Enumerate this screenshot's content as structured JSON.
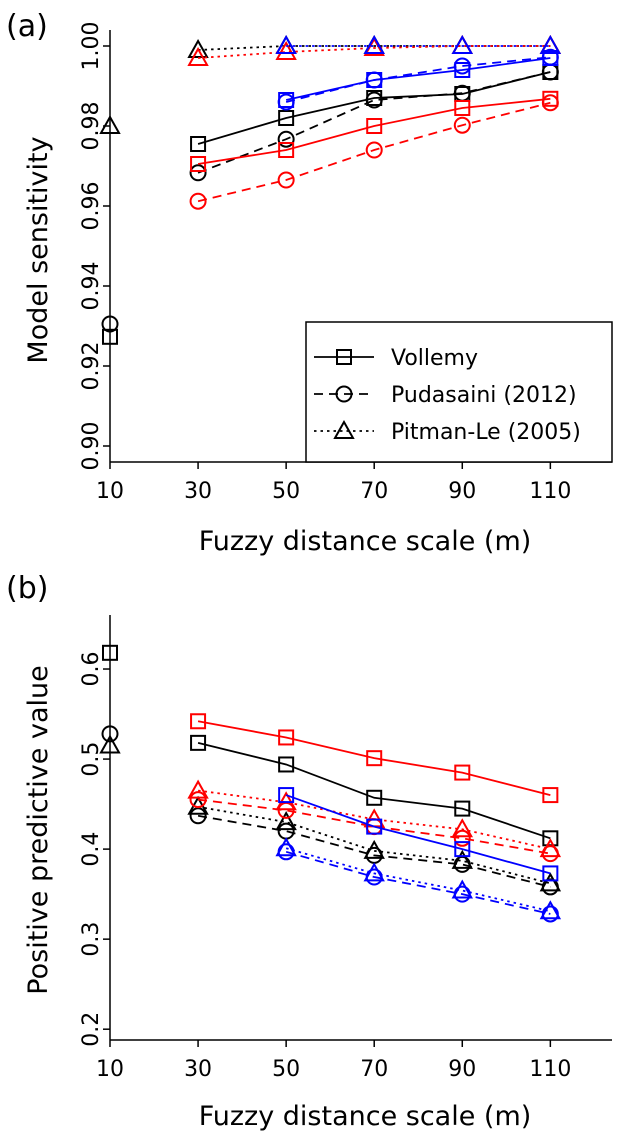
{
  "colors": {
    "Vollemy": "#000000",
    "black": "#000000",
    "red": "#ff0000",
    "blue": "#0000ff"
  },
  "chart_data": [
    {
      "panel_label": "(a)",
      "type": "line",
      "xlabel": "Fuzzy distance scale (m)",
      "ylabel": "Model sensitivity",
      "xticks": [
        10,
        30,
        50,
        70,
        90,
        110
      ],
      "xtick_labels": [
        "10",
        "30",
        "50",
        "70",
        "90",
        "110"
      ],
      "yticks": [
        0.9,
        0.92,
        0.94,
        0.96,
        0.98,
        1.0
      ],
      "ytick_labels": [
        "0.90",
        "0.92",
        "0.94",
        "0.96",
        "0.98",
        "1.00"
      ],
      "xlim": [
        10,
        124
      ],
      "ylim": [
        0.896,
        1.004
      ],
      "grid": false,
      "legend_position": "bottom-right",
      "legend": [
        {
          "label": "Vollemy",
          "marker": "square",
          "dash": "solid"
        },
        {
          "label": "Pudasaini (2012)",
          "marker": "circle",
          "dash": "dashed"
        },
        {
          "label": "Pitman-Le (2005)",
          "marker": "triangle",
          "dash": "dotted"
        }
      ],
      "series": [
        {
          "model": "Vollemy",
          "color": "black",
          "marker": "square",
          "dash": "solid",
          "x": [
            30,
            50,
            70,
            90,
            110
          ],
          "y": [
            0.9755,
            0.982,
            0.987,
            0.988,
            0.9935
          ]
        },
        {
          "model": "Pudasaini (2012)",
          "color": "black",
          "marker": "circle",
          "dash": "dashed",
          "x": [
            30,
            50,
            70,
            90,
            110
          ],
          "y": [
            0.9683,
            0.9767,
            0.9865,
            0.9882,
            0.9935
          ]
        },
        {
          "model": "Pitman-Le (2005)",
          "color": "black",
          "marker": "triangle",
          "dash": "dotted",
          "x": [
            30,
            50,
            70,
            90,
            110
          ],
          "y": [
            0.999,
            1.0,
            1.0,
            1.0,
            1.0
          ]
        },
        {
          "model": "Vollemy",
          "color": "red",
          "marker": "square",
          "dash": "solid",
          "x": [
            30,
            50,
            70,
            90,
            110
          ],
          "y": [
            0.9705,
            0.974,
            0.98,
            0.9845,
            0.9868
          ]
        },
        {
          "model": "Pudasaini (2012)",
          "color": "red",
          "marker": "circle",
          "dash": "dashed",
          "x": [
            30,
            50,
            70,
            90,
            110
          ],
          "y": [
            0.9612,
            0.9665,
            0.974,
            0.9802,
            0.9858
          ]
        },
        {
          "model": "Pitman-Le (2005)",
          "color": "red",
          "marker": "triangle",
          "dash": "dotted",
          "x": [
            30,
            50,
            70,
            90,
            110
          ],
          "y": [
            0.997,
            0.9985,
            0.9995,
            1.0,
            1.0
          ]
        },
        {
          "model": "Vollemy",
          "color": "blue",
          "marker": "square",
          "dash": "solid",
          "x": [
            50,
            70,
            90,
            110
          ],
          "y": [
            0.9865,
            0.9915,
            0.994,
            0.997
          ]
        },
        {
          "model": "Pudasaini (2012)",
          "color": "blue",
          "marker": "circle",
          "dash": "dashed",
          "x": [
            50,
            70,
            90,
            110
          ],
          "y": [
            0.986,
            0.9915,
            0.995,
            0.9972
          ]
        },
        {
          "model": "Pitman-Le (2005)",
          "color": "blue",
          "marker": "triangle",
          "dash": "dotted",
          "x": [
            50,
            70,
            90,
            110
          ],
          "y": [
            1.0,
            1.0,
            1.0,
            1.0
          ]
        }
      ],
      "single_points": [
        {
          "model": "Vollemy",
          "color": "black",
          "marker": "square",
          "x": 10,
          "y": 0.9273
        },
        {
          "model": "Pudasaini (2012)",
          "color": "black",
          "marker": "circle",
          "x": 10,
          "y": 0.9305
        },
        {
          "model": "Pitman-Le (2005)",
          "color": "black",
          "marker": "triangle",
          "x": 10,
          "y": 0.98
        }
      ]
    },
    {
      "panel_label": "(b)",
      "type": "line",
      "xlabel": "Fuzzy distance scale (m)",
      "ylabel": "Positive predictive value",
      "xticks": [
        10,
        30,
        50,
        70,
        90,
        110
      ],
      "xtick_labels": [
        "10",
        "30",
        "50",
        "70",
        "90",
        "110"
      ],
      "yticks": [
        0.2,
        0.3,
        0.4,
        0.5,
        0.6
      ],
      "ytick_labels": [
        "0.2",
        "0.3",
        "0.4",
        "0.5",
        "0.6"
      ],
      "xlim": [
        10,
        124
      ],
      "ylim": [
        0.188,
        0.66
      ],
      "grid": false,
      "series": [
        {
          "model": "Vollemy",
          "color": "black",
          "marker": "square",
          "dash": "solid",
          "x": [
            30,
            50,
            70,
            90,
            110
          ],
          "y": [
            0.518,
            0.494,
            0.457,
            0.445,
            0.412
          ]
        },
        {
          "model": "Pudasaini (2012)",
          "color": "black",
          "marker": "circle",
          "dash": "dashed",
          "x": [
            30,
            50,
            70,
            90,
            110
          ],
          "y": [
            0.437,
            0.42,
            0.393,
            0.383,
            0.358
          ]
        },
        {
          "model": "Pitman-Le (2005)",
          "color": "black",
          "marker": "triangle",
          "dash": "dotted",
          "x": [
            30,
            50,
            70,
            90,
            110
          ],
          "y": [
            0.447,
            0.43,
            0.398,
            0.387,
            0.362
          ]
        },
        {
          "model": "Vollemy",
          "color": "red",
          "marker": "square",
          "dash": "solid",
          "x": [
            30,
            50,
            70,
            90,
            110
          ],
          "y": [
            0.542,
            0.524,
            0.501,
            0.485,
            0.46
          ]
        },
        {
          "model": "Pudasaini (2012)",
          "color": "red",
          "marker": "circle",
          "dash": "dashed",
          "x": [
            30,
            50,
            70,
            90,
            110
          ],
          "y": [
            0.455,
            0.443,
            0.425,
            0.412,
            0.395
          ]
        },
        {
          "model": "Pitman-Le (2005)",
          "color": "red",
          "marker": "triangle",
          "dash": "dotted",
          "x": [
            30,
            50,
            70,
            90,
            110
          ],
          "y": [
            0.465,
            0.452,
            0.433,
            0.422,
            0.4
          ]
        },
        {
          "model": "Vollemy",
          "color": "blue",
          "marker": "square",
          "dash": "solid",
          "x": [
            50,
            70,
            90,
            110
          ],
          "y": [
            0.46,
            0.425,
            0.4,
            0.373
          ]
        },
        {
          "model": "Pudasaini (2012)",
          "color": "blue",
          "marker": "circle",
          "dash": "dashed",
          "x": [
            50,
            70,
            90,
            110
          ],
          "y": [
            0.397,
            0.369,
            0.35,
            0.328
          ]
        },
        {
          "model": "Pitman-Le (2005)",
          "color": "blue",
          "marker": "triangle",
          "dash": "dotted",
          "x": [
            50,
            70,
            90,
            110
          ],
          "y": [
            0.401,
            0.373,
            0.354,
            0.331
          ]
        }
      ],
      "single_points": [
        {
          "model": "Vollemy",
          "color": "black",
          "marker": "square",
          "x": 10,
          "y": 0.618
        },
        {
          "model": "Pudasaini (2012)",
          "color": "black",
          "marker": "circle",
          "x": 10,
          "y": 0.528
        },
        {
          "model": "Pitman-Le (2005)",
          "color": "black",
          "marker": "triangle",
          "x": 10,
          "y": 0.515
        }
      ]
    }
  ]
}
